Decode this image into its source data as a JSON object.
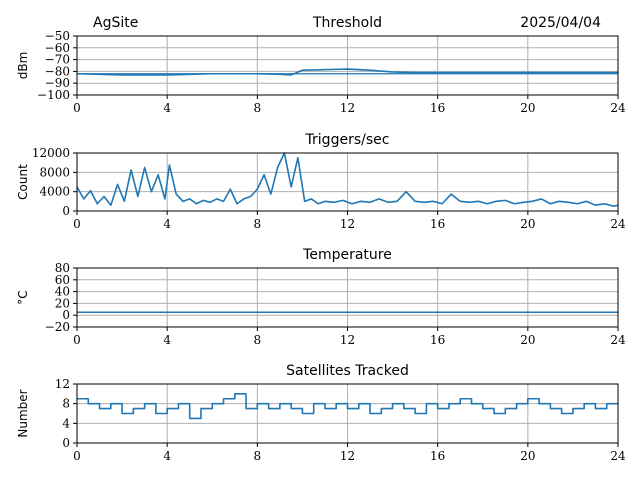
{
  "header": {
    "site": "AgSite",
    "date": "2025/04/04"
  },
  "colors": {
    "line": "#1f77b4",
    "grid": "#b0b0b0",
    "axis": "#000000"
  },
  "chart_data": [
    {
      "type": "line",
      "title": "Threshold",
      "xlabel": "",
      "ylabel": "dBm",
      "xlim": [
        0,
        24
      ],
      "ylim": [
        -100,
        -50
      ],
      "xticks": [
        0,
        4,
        8,
        12,
        16,
        20,
        24
      ],
      "yticks": [
        -50,
        -60,
        -70,
        -80,
        -90,
        -100
      ],
      "ytick_labels": [
        "−50",
        "−60",
        "−70",
        "−80",
        "−90",
        "−100"
      ],
      "hline": -82,
      "grid": true,
      "series": [
        {
          "x": [
            0,
            1,
            2,
            3,
            4,
            5,
            6,
            7,
            8,
            9,
            9.5,
            10,
            11,
            12,
            13,
            14,
            15,
            16,
            17,
            18,
            19,
            20,
            21,
            22,
            23,
            24
          ],
          "values": [
            -82,
            -82.5,
            -83,
            -83,
            -83,
            -82.5,
            -82,
            -82,
            -82,
            -82.5,
            -83,
            -79,
            -78.5,
            -78,
            -79,
            -80.5,
            -81,
            -81,
            -81,
            -81,
            -81,
            -81,
            -81,
            -81,
            -81,
            -81
          ]
        }
      ]
    },
    {
      "type": "line",
      "title": "Triggers/sec",
      "xlabel": "",
      "ylabel": "Count",
      "xlim": [
        0,
        24
      ],
      "ylim": [
        0,
        12000
      ],
      "xticks": [
        0,
        4,
        8,
        12,
        16,
        20,
        24
      ],
      "yticks": [
        0,
        4000,
        8000,
        12000
      ],
      "grid": true,
      "series": [
        {
          "x": [
            0,
            0.3,
            0.6,
            0.9,
            1.2,
            1.5,
            1.8,
            2.1,
            2.4,
            2.7,
            3.0,
            3.3,
            3.6,
            3.9,
            4.1,
            4.4,
            4.7,
            5.0,
            5.3,
            5.6,
            5.9,
            6.2,
            6.5,
            6.8,
            7.1,
            7.4,
            7.7,
            8.0,
            8.3,
            8.6,
            8.9,
            9.2,
            9.5,
            9.8,
            10.1,
            10.4,
            10.7,
            11.0,
            11.4,
            11.8,
            12.2,
            12.6,
            13.0,
            13.4,
            13.8,
            14.2,
            14.6,
            15.0,
            15.4,
            15.8,
            16.2,
            16.6,
            17.0,
            17.4,
            17.8,
            18.2,
            18.6,
            19.0,
            19.4,
            19.8,
            20.2,
            20.6,
            21.0,
            21.4,
            21.8,
            22.2,
            22.6,
            23.0,
            23.4,
            23.8,
            24
          ],
          "values": [
            5000,
            2500,
            4200,
            1500,
            3000,
            1200,
            5500,
            2000,
            8500,
            3000,
            9000,
            4000,
            7500,
            2500,
            9500,
            3500,
            2000,
            2500,
            1500,
            2200,
            1800,
            2500,
            2000,
            4500,
            1500,
            2500,
            3000,
            4500,
            7500,
            3500,
            9000,
            12000,
            5000,
            11000,
            2000,
            2500,
            1500,
            2000,
            1800,
            2200,
            1500,
            2000,
            1800,
            2500,
            1800,
            2000,
            4000,
            2000,
            1800,
            2000,
            1500,
            3500,
            2000,
            1800,
            2000,
            1500,
            2000,
            2200,
            1500,
            1800,
            2000,
            2500,
            1500,
            2000,
            1800,
            1500,
            2000,
            1200,
            1500,
            1000,
            1200
          ]
        }
      ]
    },
    {
      "type": "line",
      "title": "Temperature",
      "xlabel": "",
      "ylabel": "°C",
      "xlim": [
        0,
        24
      ],
      "ylim": [
        -20,
        80
      ],
      "xticks": [
        0,
        4,
        8,
        12,
        16,
        20,
        24
      ],
      "yticks": [
        -20,
        0,
        20,
        40,
        60,
        80
      ],
      "ytick_labels": [
        "−20",
        "0",
        "20",
        "40",
        "60",
        "80"
      ],
      "grid": true,
      "series": [
        {
          "x": [
            0,
            24
          ],
          "values": [
            5,
            5
          ]
        }
      ]
    },
    {
      "type": "line",
      "title": "Satellites Tracked",
      "xlabel": "",
      "ylabel": "Number",
      "xlim": [
        0,
        24
      ],
      "ylim": [
        0,
        12
      ],
      "xticks": [
        0,
        4,
        8,
        12,
        16,
        20,
        24
      ],
      "yticks": [
        0,
        4,
        8,
        12
      ],
      "grid": true,
      "series": [
        {
          "x": [
            0,
            0.5,
            1,
            1.5,
            2,
            2.5,
            3,
            3.5,
            4,
            4.5,
            5,
            5.5,
            6,
            6.5,
            7,
            7.5,
            8,
            8.5,
            9,
            9.5,
            10,
            10.5,
            11,
            11.5,
            12,
            12.5,
            13,
            13.5,
            14,
            14.5,
            15,
            15.5,
            16,
            16.5,
            17,
            17.5,
            18,
            18.5,
            19,
            19.5,
            20,
            20.5,
            21,
            21.5,
            22,
            22.5,
            23,
            23.5,
            24
          ],
          "values": [
            9,
            8,
            7,
            8,
            6,
            7,
            8,
            6,
            7,
            8,
            5,
            7,
            8,
            9,
            10,
            7,
            8,
            7,
            8,
            7,
            6,
            8,
            7,
            8,
            7,
            8,
            6,
            7,
            8,
            7,
            6,
            8,
            7,
            8,
            9,
            8,
            7,
            6,
            7,
            8,
            9,
            8,
            7,
            6,
            7,
            8,
            7,
            8,
            8
          ]
        }
      ]
    }
  ]
}
